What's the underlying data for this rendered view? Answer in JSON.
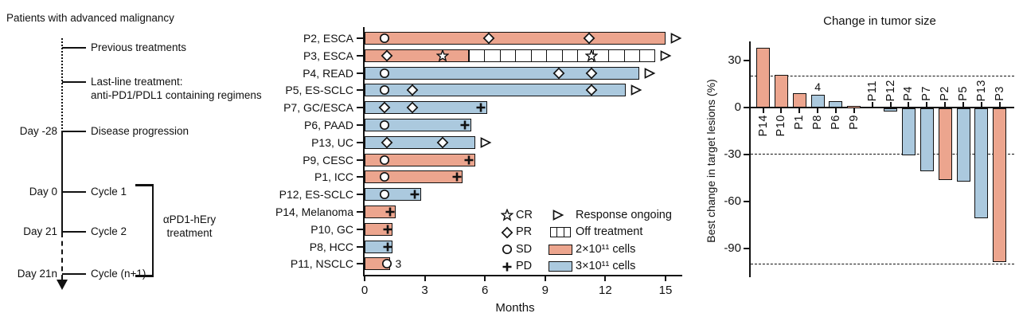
{
  "timeline": {
    "title": "Patients with advanced malignancy",
    "events": [
      {
        "day": "",
        "label": "Previous treatments"
      },
      {
        "day": "",
        "label": "Last-line treatment:\nanti-PD1/PDL1 containing regimens"
      },
      {
        "day": "Day -28",
        "label": "Disease progression"
      },
      {
        "day": "Day 0",
        "label": "Cycle 1"
      },
      {
        "day": "Day 21",
        "label": "Cycle 2"
      },
      {
        "day": "Day 21n",
        "label": "Cycle (n+1)"
      }
    ],
    "bracket_label": "αPD1-hEry\ntreatment"
  },
  "colors": {
    "dose_2e11": "#ECA58E",
    "dose_3e11": "#ABC9DE",
    "axis": "#111111"
  },
  "chart_data": [
    {
      "type": "bar",
      "subtype": "swimmer",
      "xlabel": "Months",
      "x_ticks": [
        0,
        3,
        6,
        9,
        12,
        15
      ],
      "xlim": [
        0,
        15.8
      ],
      "marker_types": {
        "CR": "star",
        "PR": "diamond",
        "SD": "circle",
        "PD": "plus"
      },
      "rows": [
        {
          "label": "P2, ESCA",
          "dose": "2e11",
          "end": 15.0,
          "ongoing": true,
          "markers": [
            {
              "t": "SD",
              "m": 1.0
            },
            {
              "t": "PR",
              "m": 6.2
            },
            {
              "t": "PR",
              "m": 11.2
            }
          ]
        },
        {
          "label": "P3, ESCA",
          "dose": "2e11",
          "end": 5.2,
          "ongoing": true,
          "off_treatment": {
            "start": 5.2,
            "end": 14.5,
            "cells": 12
          },
          "markers": [
            {
              "t": "PR",
              "m": 1.1
            },
            {
              "t": "CR",
              "m": 3.9
            },
            {
              "t": "CR",
              "m": 11.3
            }
          ]
        },
        {
          "label": "P4, READ",
          "dose": "3e11",
          "end": 13.7,
          "ongoing": true,
          "markers": [
            {
              "t": "SD",
              "m": 1.0
            },
            {
              "t": "PR",
              "m": 9.7
            },
            {
              "t": "PR",
              "m": 11.3
            }
          ]
        },
        {
          "label": "P5, ES-SCLC",
          "dose": "3e11",
          "end": 13.0,
          "ongoing": true,
          "markers": [
            {
              "t": "SD",
              "m": 1.0
            },
            {
              "t": "PR",
              "m": 2.4
            },
            {
              "t": "PR",
              "m": 11.3
            }
          ]
        },
        {
          "label": "P7, GC/ESCA",
          "dose": "3e11",
          "end": 6.1,
          "ongoing": false,
          "markers": [
            {
              "t": "PR",
              "m": 1.0
            },
            {
              "t": "PR",
              "m": 2.4
            },
            {
              "t": "PD",
              "m": 5.8
            }
          ]
        },
        {
          "label": "P6, PAAD",
          "dose": "3e11",
          "end": 5.3,
          "ongoing": false,
          "markers": [
            {
              "t": "SD",
              "m": 1.0
            },
            {
              "t": "PD",
              "m": 5.0
            }
          ]
        },
        {
          "label": "P13, UC",
          "dose": "3e11",
          "end": 5.5,
          "ongoing": true,
          "markers": [
            {
              "t": "PR",
              "m": 1.1
            },
            {
              "t": "PR",
              "m": 3.9
            }
          ]
        },
        {
          "label": "P9, CESC",
          "dose": "2e11",
          "end": 5.5,
          "ongoing": false,
          "markers": [
            {
              "t": "SD",
              "m": 1.0
            },
            {
              "t": "PD",
              "m": 5.2
            }
          ]
        },
        {
          "label": "P1, ICC",
          "dose": "2e11",
          "end": 4.9,
          "ongoing": false,
          "markers": [
            {
              "t": "SD",
              "m": 1.0
            },
            {
              "t": "PD",
              "m": 4.6
            }
          ]
        },
        {
          "label": "P12, ES-SCLC",
          "dose": "3e11",
          "end": 2.8,
          "ongoing": false,
          "markers": [
            {
              "t": "SD",
              "m": 1.0
            },
            {
              "t": "PD",
              "m": 2.5
            }
          ]
        },
        {
          "label": "P14, Melanoma",
          "dose": "2e11",
          "end": 1.55,
          "ongoing": false,
          "markers": [
            {
              "t": "PD",
              "m": 1.25
            }
          ]
        },
        {
          "label": "P10, GC",
          "dose": "2e11",
          "end": 1.4,
          "ongoing": false,
          "markers": [
            {
              "t": "PD",
              "m": 1.15
            }
          ]
        },
        {
          "label": "P8, HCC",
          "dose": "3e11",
          "end": 1.4,
          "ongoing": false,
          "markers": [
            {
              "t": "PD",
              "m": 1.15
            }
          ]
        },
        {
          "label": "P11, NSCLC",
          "dose": "2e11",
          "end": 1.25,
          "ongoing": false,
          "note": "3",
          "markers": [
            {
              "t": "SD",
              "m": 1.1
            }
          ]
        }
      ],
      "legend": {
        "response_markers": [
          {
            "symbol": "star",
            "label": "CR"
          },
          {
            "symbol": "diamond",
            "label": "PR"
          },
          {
            "symbol": "circle",
            "label": "SD"
          },
          {
            "symbol": "plus",
            "label": "PD"
          }
        ],
        "items": [
          {
            "symbol": "triangle",
            "label": "Response ongoing"
          },
          {
            "symbol": "segmented-box",
            "label": "Off treatment"
          },
          {
            "symbol": "swatch-2e11",
            "label": "2×10¹¹ cells"
          },
          {
            "symbol": "swatch-3e11",
            "label": "3×10¹¹ cells"
          }
        ]
      }
    },
    {
      "type": "bar",
      "subtype": "waterfall",
      "title": "Change in tumor size",
      "ylabel": "Best change in target lesions (%)",
      "y_ticks": [
        30,
        0,
        -30,
        -60,
        -90
      ],
      "ylim": [
        -105,
        42
      ],
      "reference_lines": [
        20,
        -30,
        -100
      ],
      "bars": [
        {
          "label": "P14",
          "value": 38,
          "dose": "2e11"
        },
        {
          "label": "P10",
          "value": 21,
          "dose": "2e11"
        },
        {
          "label": "P1",
          "value": 9,
          "dose": "2e11"
        },
        {
          "label": "P8",
          "value": 8,
          "dose": "3e11",
          "note": "4"
        },
        {
          "label": "P6",
          "value": 4,
          "dose": "3e11"
        },
        {
          "label": "P9",
          "value": 1,
          "dose": "2e11"
        },
        {
          "label": "P11",
          "value": 0,
          "dose": "2e11"
        },
        {
          "label": "P12",
          "value": -2,
          "dose": "3e11"
        },
        {
          "label": "P4",
          "value": -30,
          "dose": "3e11"
        },
        {
          "label": "P7",
          "value": -40,
          "dose": "3e11"
        },
        {
          "label": "P2",
          "value": -46,
          "dose": "2e11"
        },
        {
          "label": "P5",
          "value": -47,
          "dose": "3e11"
        },
        {
          "label": "P13",
          "value": -70,
          "dose": "3e11"
        },
        {
          "label": "P3",
          "value": -98,
          "dose": "2e11"
        }
      ]
    }
  ]
}
